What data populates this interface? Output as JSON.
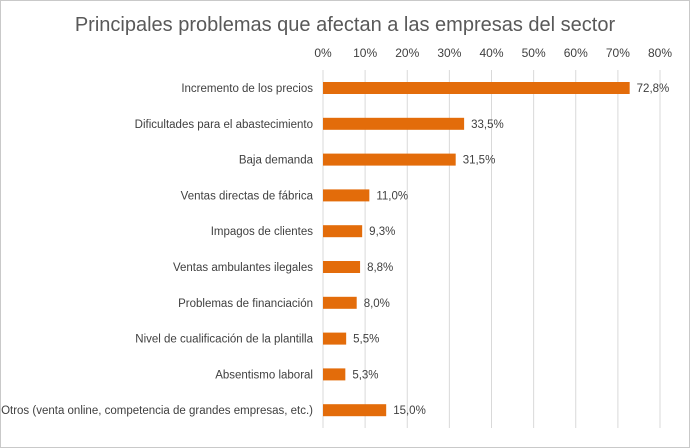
{
  "chart_data": {
    "type": "bar",
    "orientation": "horizontal",
    "title": "Principales problemas que afectan a las empresas del sector",
    "categories": [
      "Incremento de los precios",
      "Dificultades para el abastecimiento",
      "Baja demanda",
      "Ventas directas de fábrica",
      "Impagos de clientes",
      "Ventas ambulantes ilegales",
      "Problemas de financiación",
      "Nivel de cualificación de la plantilla",
      "Absentismo laboral",
      "Otros (venta online, competencia de grandes empresas, etc.)"
    ],
    "values": [
      72.8,
      33.5,
      31.5,
      11.0,
      9.3,
      8.8,
      8.0,
      5.5,
      5.3,
      15.0
    ],
    "data_labels": [
      "72,8%",
      "33,5%",
      "31,5%",
      "11,0%",
      "9,3%",
      "8,8%",
      "8,0%",
      "5,5%",
      "5,3%",
      "15,0%"
    ],
    "xlim": [
      0,
      80
    ],
    "x_ticks": [
      "0%",
      "10%",
      "20%",
      "30%",
      "40%",
      "50%",
      "60%",
      "70%",
      "80%"
    ],
    "axis_position": "top",
    "grid": true,
    "bar_color": "#e36c0a",
    "grid_color": "#d9d9d9"
  }
}
